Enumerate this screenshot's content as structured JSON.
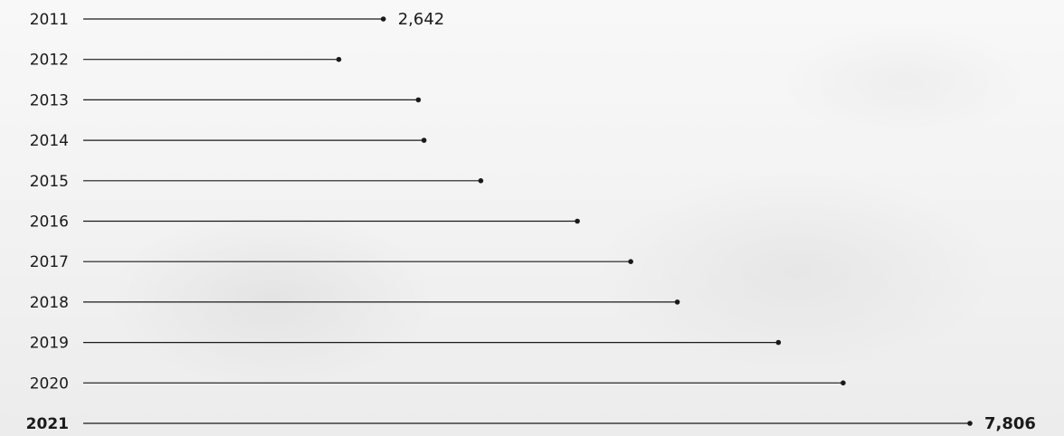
{
  "chart_data": {
    "type": "lollipop",
    "orientation": "horizontal",
    "categories": [
      "2011",
      "2012",
      "2013",
      "2014",
      "2015",
      "2016",
      "2017",
      "2018",
      "2019",
      "2020",
      "2021"
    ],
    "values": [
      2642,
      2250,
      2950,
      3000,
      3500,
      4350,
      4820,
      5230,
      6120,
      6690,
      7806
    ],
    "value_labels": {
      "2011": "2,642",
      "2021": "7,806"
    },
    "highlight": "2021",
    "colors": {
      "line": "#1a1a1a",
      "text": "#1a1a1a"
    }
  }
}
